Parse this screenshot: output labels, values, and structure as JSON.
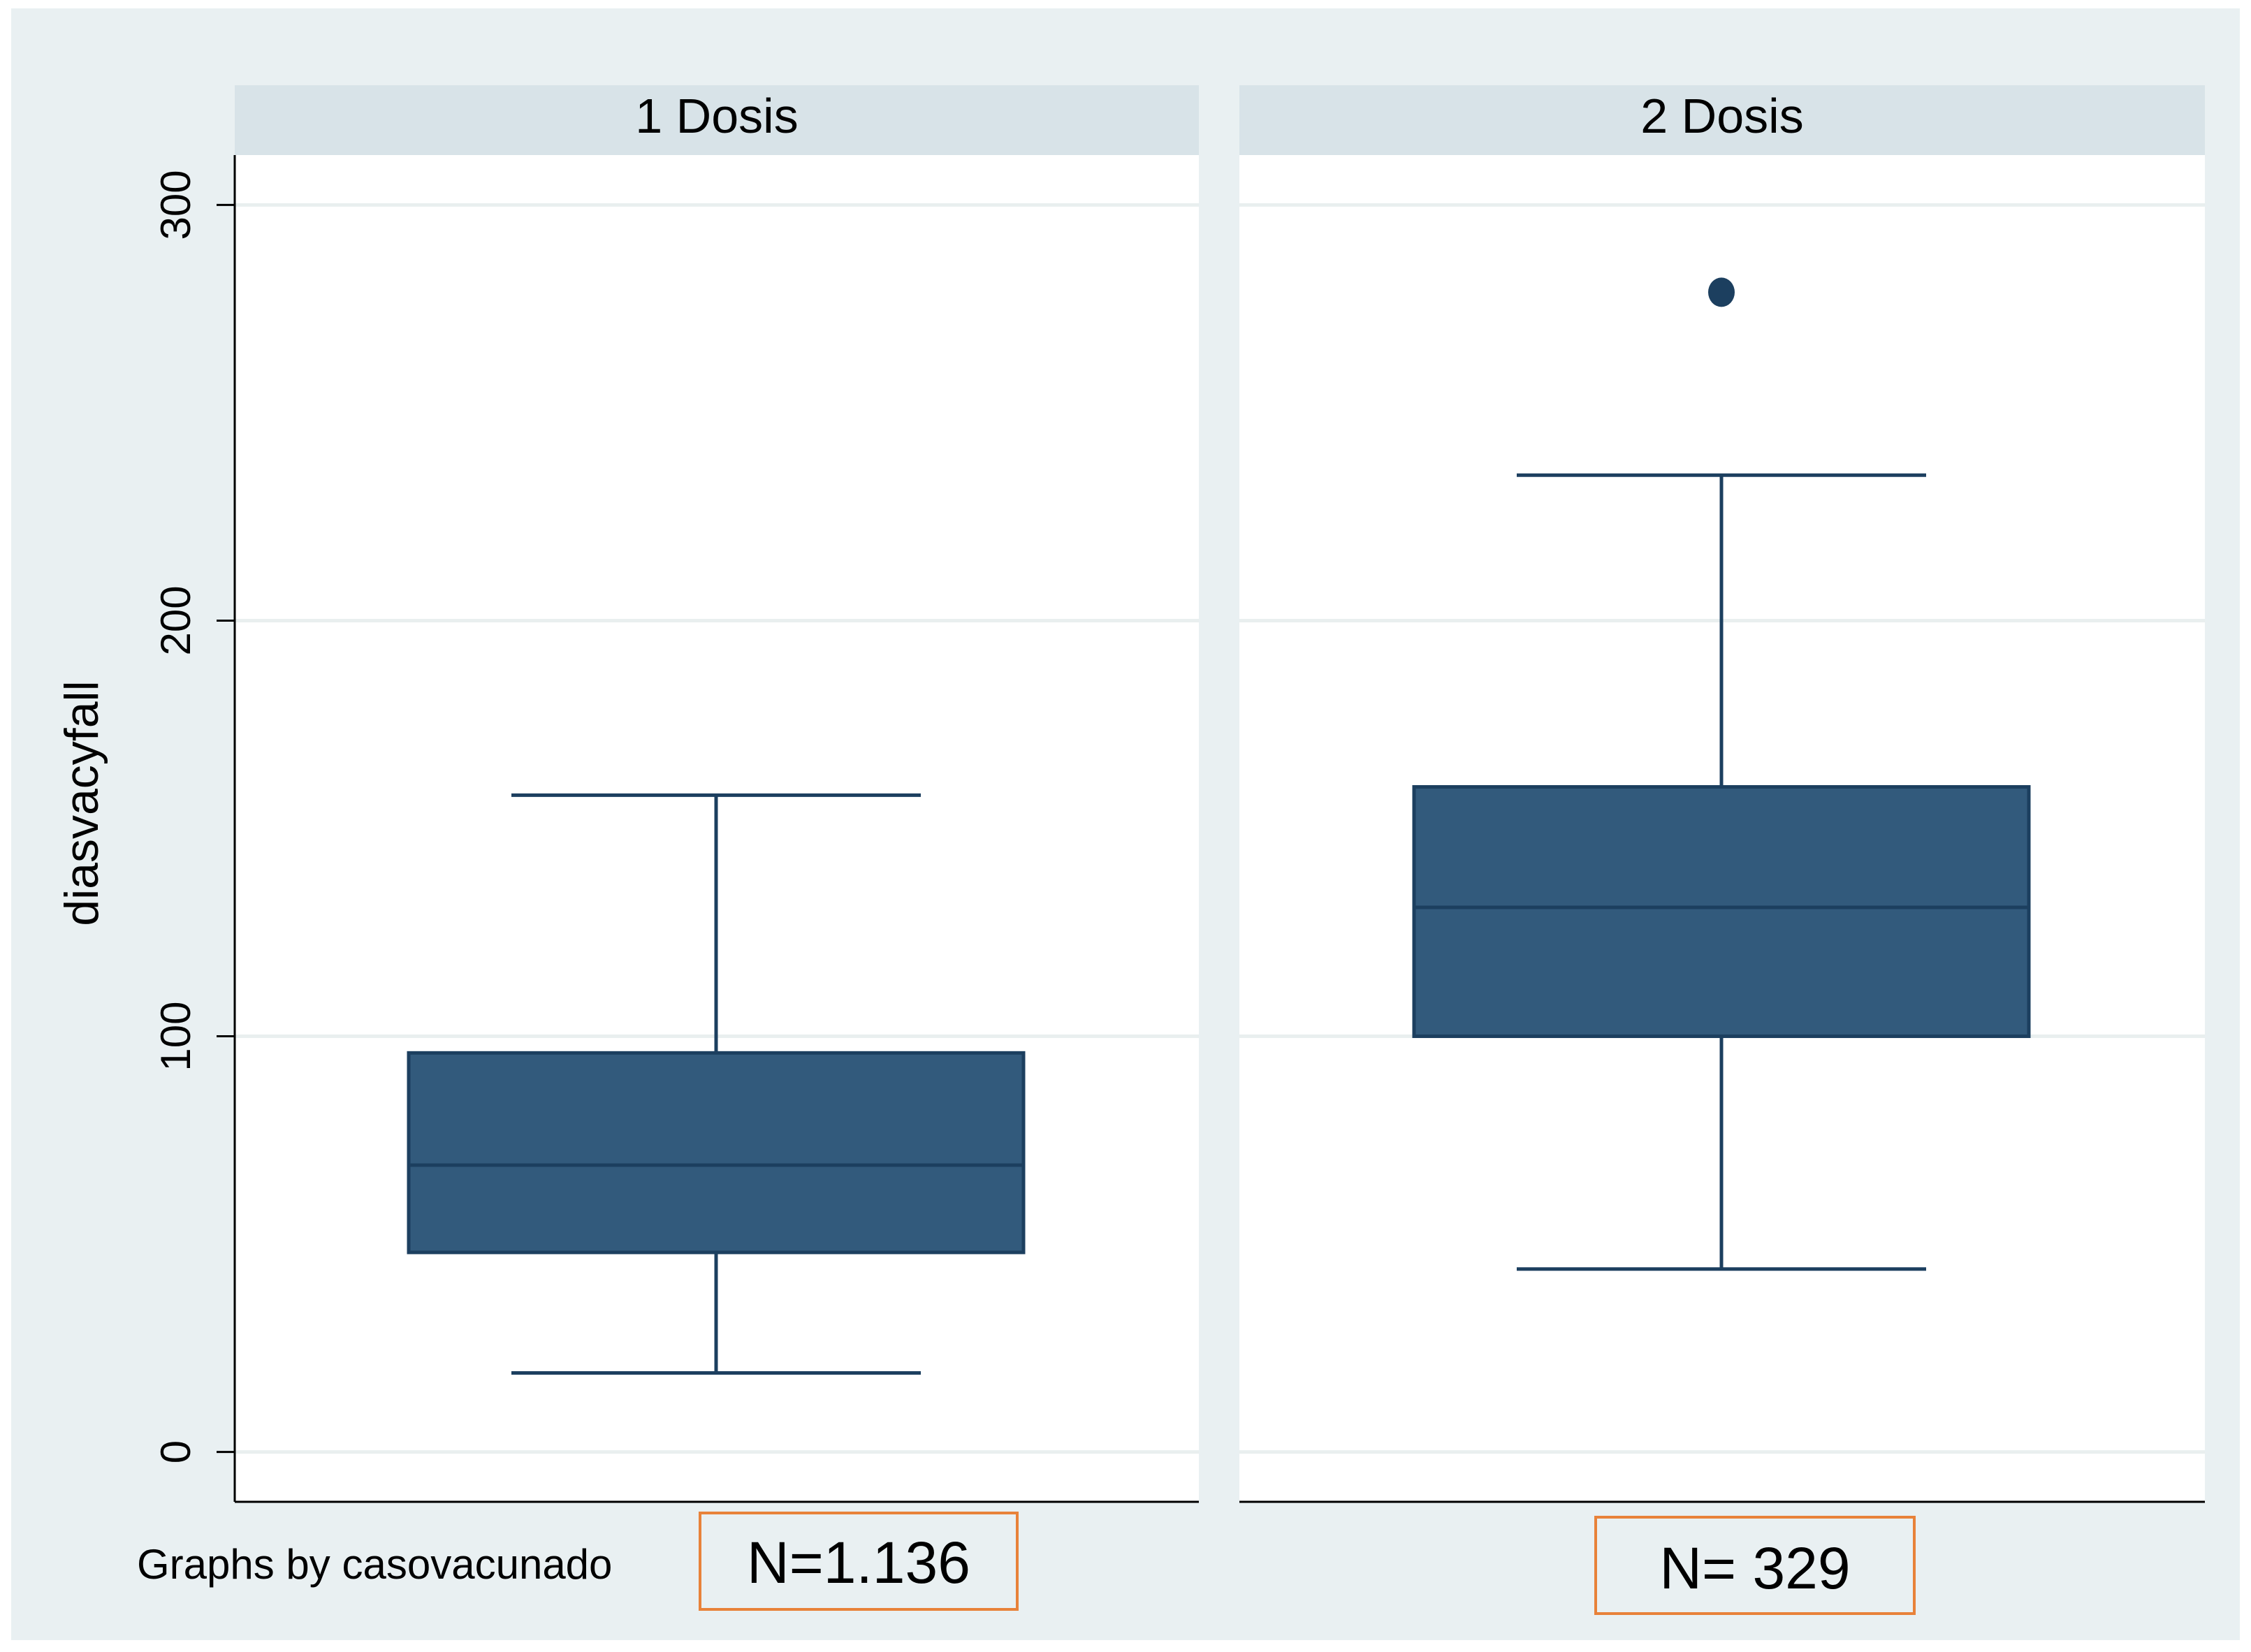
{
  "chart_data": {
    "type": "box",
    "ylabel": "diasvacyfall",
    "ylim": [
      -12,
      312
    ],
    "yticks": [
      0,
      100,
      200,
      300
    ],
    "ytick_labels": [
      "0",
      "100",
      "200",
      "300"
    ],
    "grid": true,
    "note": "Graphs by casovacunado",
    "colors": {
      "box": "#325a7c",
      "line": "#1c3f5f",
      "background": "#e9f0f2",
      "panel_header": "#d8e3e8",
      "gridline": "#e9efef",
      "annotation_border": "#e8823a"
    },
    "panels": [
      {
        "title": "1 Dosis",
        "q1": 48,
        "median": 69,
        "q3": 96,
        "whisker_low": 19,
        "whisker_high": 158,
        "outliers": [],
        "annotation": "N=1.136"
      },
      {
        "title": "2 Dosis",
        "q1": 100,
        "median": 131,
        "q3": 160,
        "whisker_low": 44,
        "whisker_high": 235,
        "outliers": [
          279
        ],
        "annotation": "N= 329"
      }
    ]
  }
}
